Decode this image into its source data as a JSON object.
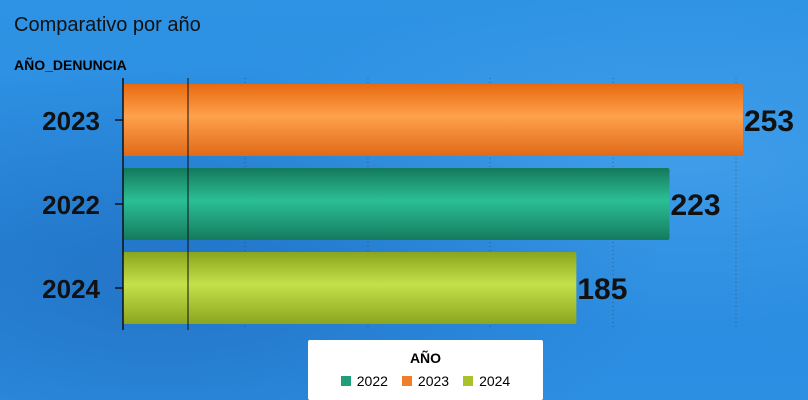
{
  "chart_data": {
    "type": "bar",
    "orientation": "horizontal",
    "title": "Comparativo por año",
    "ylabel": "AÑO_DENUNCIA",
    "categories": [
      "2023",
      "2022",
      "2024"
    ],
    "values": [
      253,
      223,
      185
    ],
    "bar_colors": [
      "#f07d2a",
      "#1f9e7a",
      "#a8c22e"
    ],
    "xlim": [
      0,
      253
    ],
    "grid": true,
    "legend": {
      "title": "AÑO",
      "placement": "bottom",
      "entries": [
        {
          "label": "2022",
          "color": "#1f9e7a"
        },
        {
          "label": "2023",
          "color": "#f07d2a"
        },
        {
          "label": "2024",
          "color": "#a8c22e"
        }
      ]
    }
  }
}
